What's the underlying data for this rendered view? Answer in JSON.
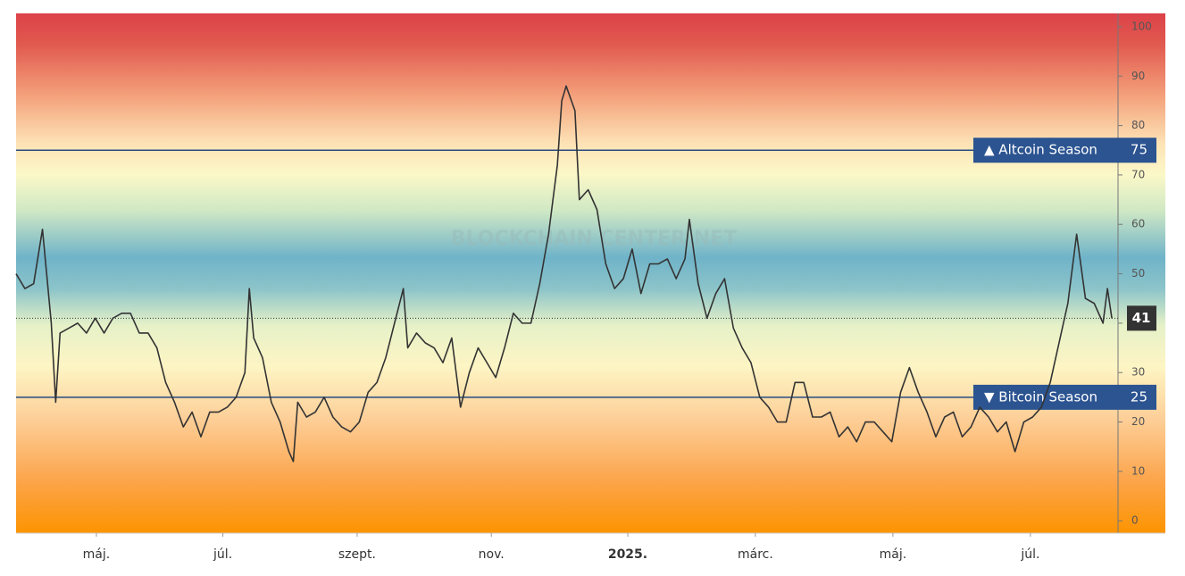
{
  "chart_data": {
    "type": "line",
    "watermark": "BLOCKCHAIN CENTER.NET",
    "x": [
      0,
      4,
      8,
      12,
      16,
      18,
      20,
      24,
      28,
      32,
      36,
      40,
      44,
      48,
      52,
      56,
      60,
      64,
      68,
      72,
      76,
      80,
      84,
      88,
      92,
      96,
      100,
      104,
      106,
      108,
      112,
      116,
      120,
      124,
      126,
      128,
      132,
      136,
      140,
      144,
      148,
      152,
      156,
      160,
      164,
      168,
      172,
      176,
      178,
      182,
      186,
      190,
      194,
      198,
      202,
      206,
      210,
      214,
      218,
      222,
      226,
      230,
      234,
      238,
      242,
      246,
      248,
      250,
      254,
      256,
      260,
      264,
      268,
      272,
      276,
      280,
      284,
      288,
      292,
      296,
      300,
      304,
      306,
      310,
      314,
      318,
      322,
      326,
      330,
      334,
      338,
      342,
      346,
      350,
      354,
      358,
      362,
      366,
      370,
      374,
      378,
      382,
      386,
      390,
      394,
      398,
      402,
      406,
      410,
      414,
      418,
      422,
      426,
      430,
      434,
      438,
      442,
      446,
      450,
      454,
      458,
      462,
      466,
      470,
      474,
      478,
      482,
      486,
      490,
      494,
      496,
      498
    ],
    "series": [
      {
        "color": "#333333",
        "values": [
          50,
          47,
          48,
          59,
          40,
          24,
          38,
          39,
          40,
          38,
          41,
          38,
          41,
          42,
          42,
          38,
          38,
          35,
          28,
          24,
          19,
          22,
          17,
          22,
          22,
          23,
          25,
          30,
          47,
          37,
          33,
          24,
          20,
          14,
          12,
          24,
          21,
          22,
          25,
          21,
          19,
          18,
          20,
          26,
          28,
          33,
          40,
          47,
          35,
          38,
          36,
          35,
          32,
          37,
          23,
          30,
          35,
          32,
          29,
          35,
          42,
          40,
          40,
          48,
          58,
          72,
          85,
          88,
          83,
          65,
          67,
          63,
          52,
          47,
          49,
          55,
          46,
          52,
          52,
          53,
          49,
          53,
          61,
          48,
          41,
          46,
          49,
          39,
          35,
          32,
          25,
          23,
          20,
          20,
          28,
          28,
          21,
          21,
          22,
          17,
          19,
          16,
          20,
          20,
          18,
          16,
          26,
          31,
          26,
          22,
          17,
          21,
          22,
          17,
          19,
          23,
          21,
          18,
          20,
          14,
          20,
          21,
          23,
          28,
          36,
          44,
          58,
          45,
          44,
          40,
          47,
          41
        ]
      }
    ],
    "last_value": 41,
    "xlim": [
      0,
      500
    ],
    "xticks": [
      {
        "value": 36.5,
        "label": "máj."
      },
      {
        "value": 94,
        "label": "júl."
      },
      {
        "value": 155,
        "label": "szept."
      },
      {
        "value": 216,
        "label": "nov."
      },
      {
        "value": 278,
        "label": "2025."
      },
      {
        "value": 336,
        "label": "márc."
      },
      {
        "value": 398.5,
        "label": "máj."
      },
      {
        "value": 461,
        "label": "júl."
      }
    ],
    "ylim": [
      -2.5,
      102.7
    ],
    "yticks": [
      0,
      10,
      20,
      30,
      40,
      50,
      60,
      70,
      80,
      90,
      100
    ],
    "thresholds": [
      {
        "label": "▲ Altcoin Season",
        "value": 75
      },
      {
        "label": "▼ Bitcoin Season",
        "value": 25
      }
    ]
  }
}
